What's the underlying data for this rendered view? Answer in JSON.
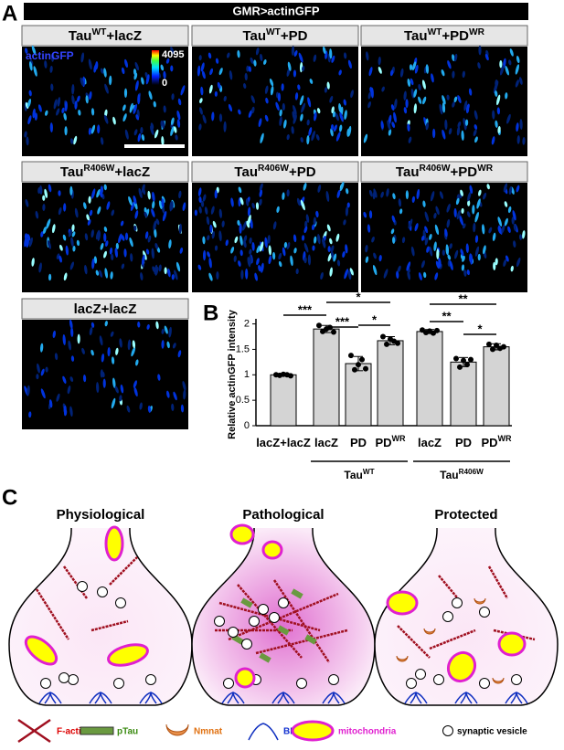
{
  "panel_a": {
    "letter": "A",
    "header": "GMR>actinGFP",
    "panels": [
      {
        "text": "Tau",
        "sup": "WT",
        "suffix": "+lacZ"
      },
      {
        "text": "Tau",
        "sup": "WT",
        "suffix": "+PD"
      },
      {
        "text": "Tau",
        "sup": "WT",
        "suffix": "+PD",
        "sup2": "WR"
      },
      {
        "text": "Tau",
        "sup": "R406W",
        "suffix": "+lacZ"
      },
      {
        "text": "Tau",
        "sup": "R406W",
        "suffix": "+PD"
      },
      {
        "text": "Tau",
        "sup": "R406W",
        "suffix": "+PD",
        "sup2": "WR"
      },
      {
        "text": "lacZ+lacZ"
      }
    ],
    "colorbar": {
      "label": "actinGFP",
      "max": "4095",
      "min": "0"
    }
  },
  "chart_data": {
    "type": "bar",
    "letter": "B",
    "ylabel": "Relative actinGFP intensity",
    "categories": [
      "lacZ+lacZ",
      "lacZ",
      "PD",
      "PD",
      "lacZ",
      "PD",
      "PD"
    ],
    "category_sups": [
      null,
      null,
      null,
      "WR",
      null,
      null,
      "WR"
    ],
    "values": [
      1.0,
      1.9,
      1.22,
      1.67,
      1.85,
      1.25,
      1.55
    ],
    "errors": [
      0.02,
      0.07,
      0.14,
      0.08,
      0.04,
      0.09,
      0.06
    ],
    "points": [
      [
        1.0,
        0.99,
        1.01,
        1.0,
        0.98
      ],
      [
        1.97,
        1.85,
        1.9,
        1.93,
        1.84
      ],
      [
        1.38,
        1.1,
        1.2,
        1.3,
        1.12
      ],
      [
        1.75,
        1.6,
        1.7,
        1.66,
        1.62
      ],
      [
        1.88,
        1.83,
        1.86,
        1.82,
        1.87
      ],
      [
        1.32,
        1.15,
        1.28,
        1.2,
        1.3
      ],
      [
        1.6,
        1.5,
        1.58,
        1.52,
        1.55
      ]
    ],
    "groups": [
      {
        "text": "Tau",
        "sup": "WT"
      },
      {
        "text": "Tau",
        "sup": "R406W"
      }
    ],
    "significance": [
      "***",
      "***",
      "*",
      "*",
      "**",
      "**",
      "*"
    ],
    "color": "#d4d4d4",
    "ylim": [
      0,
      2.1
    ],
    "yticks": [
      0,
      0.5,
      1,
      1.5,
      2
    ]
  },
  "panel_c": {
    "letter": "C",
    "titles": [
      "Physiological",
      "Pathological",
      "Protected"
    ],
    "legend": [
      "F-actin",
      "pTau",
      "Nmnat",
      "BRP",
      "mitochondria",
      "synaptic vesicle"
    ]
  }
}
